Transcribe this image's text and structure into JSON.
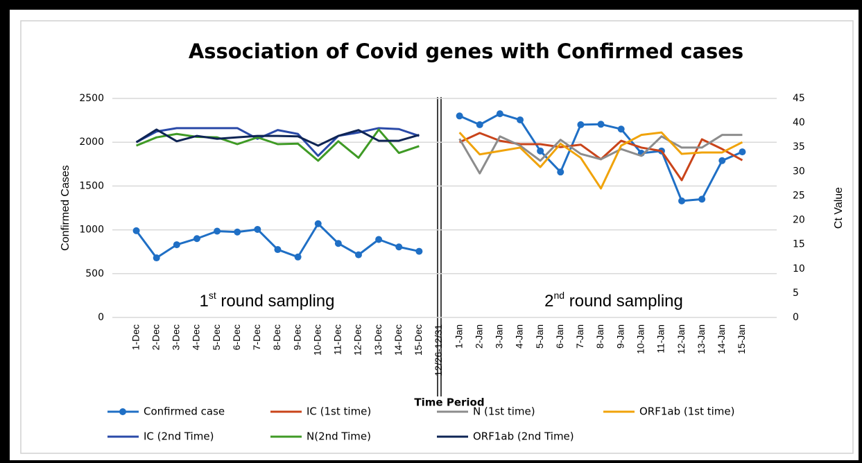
{
  "chart_data": {
    "type": "line",
    "title": "Association of Covid genes with Confirmed cases",
    "x_label": "Time Period",
    "y_label": "Confirmed Cases",
    "y2_label": "Ct Value",
    "annotations": [
      {
        "number": "1",
        "sup": "st",
        "rest": " round sampling"
      },
      {
        "number": "2",
        "sup": "nd",
        "rest": " round sampling"
      }
    ],
    "categories": [
      "1-Dec",
      "2-Dec",
      "3-Dec",
      "4-Dec",
      "5-Dec",
      "6-Dec",
      "7-Dec",
      "8-Dec",
      "9-Dec",
      "10-Dec",
      "11-Dec",
      "12-Dec",
      "13-Dec",
      "14-Dec",
      "15-Dec",
      "12/26-12/31",
      "1-Jan",
      "2-Jan",
      "3-Jan",
      "4-Jan",
      "5-Jan",
      "6-Jan",
      "7-Jan",
      "8-Jan",
      "9-Jan",
      "10-Jan",
      "11-Jan",
      "12-Jan",
      "13-Jan",
      "14-Jan",
      "15-Jan"
    ],
    "ylim": [
      0,
      2500
    ],
    "yticks": [
      0,
      500,
      1000,
      1500,
      2000,
      2500
    ],
    "y2lim": [
      0,
      45
    ],
    "y2ticks": [
      0,
      5,
      10,
      15,
      20,
      25,
      30,
      35,
      40,
      45
    ],
    "grid": true,
    "legend": "bottom",
    "series": [
      {
        "name": "Confirmed case",
        "color": "#1f6fc5",
        "markers": true,
        "values": [
          990,
          680,
          830,
          900,
          985,
          975,
          1005,
          775,
          690,
          1070,
          845,
          715,
          890,
          805,
          755,
          null,
          2300,
          2200,
          2325,
          2255,
          1900,
          1660,
          2200,
          2205,
          2150,
          1875,
          1900,
          1330,
          1350,
          1790,
          1890
        ]
      },
      {
        "name": "IC (1st time)",
        "color": "#c9441a",
        "axis": "y2",
        "values": [
          null,
          null,
          null,
          null,
          null,
          null,
          null,
          null,
          null,
          null,
          null,
          null,
          null,
          null,
          null,
          null,
          36.0,
          37.9,
          36.3,
          35.6,
          35.6,
          35.0,
          35.5,
          32.5,
          36.3,
          34.9,
          34.2,
          28.2,
          36.6,
          34.6,
          32.3
        ]
      },
      {
        "name": "N (1st time)",
        "color": "#8c8c8c",
        "axis": "y2",
        "values": [
          null,
          null,
          null,
          null,
          null,
          null,
          null,
          null,
          null,
          null,
          null,
          null,
          null,
          null,
          null,
          null,
          36.7,
          29.6,
          37.2,
          35.3,
          32.2,
          36.5,
          33.6,
          32.5,
          34.6,
          33.2,
          37.2,
          34.9,
          34.9,
          37.5,
          37.5
        ]
      },
      {
        "name": "ORF1ab (1st time)",
        "color": "#f0a30a",
        "axis": "y2",
        "values": [
          null,
          null,
          null,
          null,
          null,
          null,
          null,
          null,
          null,
          null,
          null,
          null,
          null,
          null,
          null,
          null,
          38.0,
          33.5,
          34.2,
          34.9,
          30.9,
          35.7,
          32.8,
          26.5,
          35.3,
          37.5,
          38.0,
          33.6,
          33.9,
          33.9,
          36.0
        ]
      },
      {
        "name": "IC (2nd Time)",
        "color": "#2a4aa8",
        "axis": "y2",
        "values": [
          36.0,
          38.2,
          38.9,
          38.9,
          38.9,
          38.9,
          36.7,
          38.5,
          37.7,
          33.2,
          37.3,
          38.0,
          38.9,
          38.7,
          37.3,
          null,
          null,
          null,
          null,
          null,
          null,
          null,
          null,
          null,
          null,
          null,
          null,
          null,
          null,
          null,
          null
        ]
      },
      {
        "name": "N(2nd Time)",
        "color": "#3f9a25",
        "axis": "y2",
        "values": [
          35.3,
          37.0,
          37.7,
          37.1,
          37.0,
          35.6,
          37.0,
          35.6,
          35.7,
          32.2,
          36.2,
          32.8,
          38.6,
          33.8,
          35.2,
          null,
          null,
          null,
          null,
          null,
          null,
          null,
          null,
          null,
          null,
          null,
          null,
          null,
          null,
          null,
          null
        ]
      },
      {
        "name": "ORF1ab (2nd Time)",
        "color": "#0e2454",
        "axis": "y2",
        "values": [
          36.0,
          38.6,
          36.2,
          37.3,
          36.7,
          37.0,
          37.3,
          37.3,
          37.2,
          35.3,
          37.3,
          38.5,
          36.3,
          36.3,
          37.5,
          null,
          null,
          null,
          null,
          null,
          null,
          null,
          null,
          null,
          null,
          null,
          null,
          null,
          null,
          null,
          null
        ]
      }
    ]
  }
}
